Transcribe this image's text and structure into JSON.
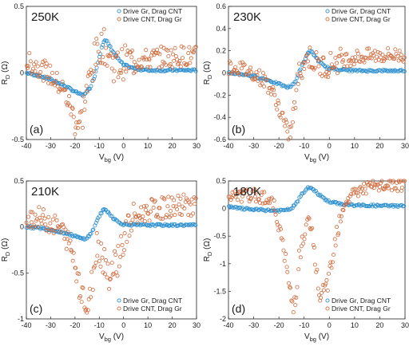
{
  "colors": {
    "drive_gr": "#2b8fd0",
    "drive_cnt": "#d2693a",
    "axis": "#222222"
  },
  "chart_data": [
    {
      "type": "scatter",
      "panel_label": "(a)",
      "temperature": "250K",
      "xlabel": "V",
      "xlabel_sub": "bg",
      "xlabel_unit": " (V)",
      "ylabel": "R",
      "ylabel_sub": "D",
      "ylabel_unit": " (Ω)",
      "xlim": [
        -40,
        30
      ],
      "ylim": [
        -0.5,
        0.5
      ],
      "xticks": [
        "-40",
        "-30",
        "-20",
        "-10",
        "0",
        "10",
        "20",
        "30"
      ],
      "yticks": [
        "-0.5",
        "0",
        "0.5"
      ],
      "ytick_values": [
        -0.5,
        0,
        0.5
      ],
      "legend": {
        "position": "top-right",
        "entries": [
          "Drive Gr, Drag CNT",
          "Drive CNT, Drag Gr"
        ]
      },
      "series": [
        {
          "name": "Drive Gr, Drag CNT",
          "color": "#2b8fd0",
          "x": [
            -40,
            -35,
            -30,
            -25,
            -20,
            -17,
            -14,
            -12,
            -10,
            -9,
            -8,
            -7,
            -6,
            -4,
            -2,
            0,
            5,
            10,
            20,
            30
          ],
          "y": [
            0.0,
            -0.02,
            -0.05,
            -0.09,
            -0.14,
            -0.17,
            -0.12,
            -0.03,
            0.12,
            0.2,
            0.24,
            0.24,
            0.21,
            0.15,
            0.1,
            0.06,
            0.03,
            0.02,
            0.02,
            0.02
          ]
        },
        {
          "name": "Drive CNT, Drag Gr",
          "color": "#d2693a",
          "x": [
            -40,
            -35,
            -30,
            -25,
            -22,
            -20,
            -18,
            -17,
            -16,
            -14,
            -12,
            -10,
            -8,
            -6,
            -4,
            -2,
            0,
            5,
            10,
            15,
            20,
            25,
            30
          ],
          "y": [
            0.08,
            0.05,
            -0.02,
            -0.12,
            -0.25,
            -0.35,
            -0.38,
            -0.32,
            -0.2,
            -0.05,
            0.1,
            0.2,
            0.2,
            0.12,
            0.06,
            0.05,
            0.08,
            0.1,
            0.1,
            0.12,
            0.12,
            0.13,
            0.12
          ]
        }
      ]
    },
    {
      "type": "scatter",
      "panel_label": "(b)",
      "temperature": "230K",
      "xlabel": "V",
      "xlabel_sub": "bg",
      "xlabel_unit": " (V)",
      "ylabel": "R",
      "ylabel_sub": "D",
      "ylabel_unit": " (Ω)",
      "xlim": [
        -40,
        30
      ],
      "ylim": [
        -0.6,
        0.6
      ],
      "xticks": [
        "-40",
        "-30",
        "-20",
        "-10",
        "0",
        "10",
        "20",
        "30"
      ],
      "yticks": [
        "-0.6",
        "-0.4",
        "-0.2",
        "0",
        "0.2",
        "0.4",
        "0.6"
      ],
      "ytick_values": [
        -0.6,
        -0.4,
        -0.2,
        0,
        0.2,
        0.4,
        0.6
      ],
      "legend": {
        "position": "top-right",
        "entries": [
          "Drive Gr, Drag CNT",
          "Drive CNT, Drag Gr"
        ]
      },
      "series": [
        {
          "name": "Drive Gr, Drag CNT",
          "color": "#2b8fd0",
          "x": [
            -40,
            -35,
            -30,
            -25,
            -20,
            -17,
            -15,
            -13,
            -11,
            -9,
            -8,
            -7,
            -6,
            -4,
            -2,
            0,
            5,
            10,
            20,
            30
          ],
          "y": [
            0.0,
            -0.01,
            -0.03,
            -0.06,
            -0.1,
            -0.13,
            -0.12,
            -0.06,
            0.06,
            0.16,
            0.19,
            0.19,
            0.16,
            0.1,
            0.06,
            0.04,
            0.03,
            0.02,
            0.02,
            0.02
          ]
        },
        {
          "name": "Drive CNT, Drag Gr",
          "color": "#d2693a",
          "x": [
            -40,
            -35,
            -30,
            -25,
            -22,
            -20,
            -18,
            -17,
            -16,
            -15,
            -14,
            -13,
            -12,
            -10,
            -8,
            -6,
            -4,
            -2,
            0,
            5,
            10,
            15,
            20,
            25,
            30
          ],
          "y": [
            0.06,
            0.04,
            0.0,
            -0.08,
            -0.2,
            -0.3,
            -0.45,
            -0.55,
            -0.58,
            -0.5,
            -0.35,
            -0.15,
            0.0,
            0.1,
            0.15,
            0.1,
            0.06,
            0.06,
            0.08,
            0.12,
            0.14,
            0.15,
            0.16,
            0.16,
            0.16
          ]
        }
      ]
    },
    {
      "type": "scatter",
      "panel_label": "(c)",
      "temperature": "210K",
      "xlabel": "V",
      "xlabel_sub": "bg",
      "xlabel_unit": " (V)",
      "ylabel": "R",
      "ylabel_sub": "D",
      "ylabel_unit": " (Ω)",
      "xlim": [
        -40,
        30
      ],
      "ylim": [
        -1,
        0.5
      ],
      "xticks": [
        "-40",
        "-30",
        "-20",
        "-10",
        "0",
        "10",
        "20",
        "30"
      ],
      "yticks": [
        "-1",
        "-0.5",
        "0",
        "0.5"
      ],
      "ytick_values": [
        -1,
        -0.5,
        0,
        0.5
      ],
      "legend": {
        "position": "bottom-right",
        "entries": [
          "Drive Gr, Drag CNT",
          "Drive CNT, Drag Gr"
        ]
      },
      "series": [
        {
          "name": "Drive Gr, Drag CNT",
          "color": "#2b8fd0",
          "x": [
            -40,
            -35,
            -30,
            -25,
            -20,
            -17,
            -15,
            -13,
            -11,
            -9,
            -8,
            -7,
            -6,
            -4,
            -2,
            0,
            5,
            10,
            20,
            30
          ],
          "y": [
            0.0,
            -0.01,
            -0.03,
            -0.06,
            -0.1,
            -0.13,
            -0.12,
            -0.06,
            0.07,
            0.16,
            0.19,
            0.18,
            0.15,
            0.09,
            0.05,
            0.03,
            0.02,
            0.02,
            0.02,
            0.02
          ]
        },
        {
          "name": "Drive CNT, Drag Gr",
          "color": "#d2693a",
          "x": [
            -40,
            -35,
            -30,
            -25,
            -22,
            -20,
            -18,
            -16,
            -15,
            -14,
            -13,
            -12,
            -11,
            -10,
            -8,
            -6,
            -4,
            -2,
            0,
            2,
            5,
            10,
            15,
            20,
            25,
            30
          ],
          "y": [
            0.12,
            0.1,
            0.05,
            -0.05,
            -0.2,
            -0.4,
            -0.6,
            -0.8,
            -0.92,
            -0.85,
            -0.6,
            -0.35,
            -0.2,
            -0.2,
            -0.35,
            -0.5,
            -0.45,
            -0.3,
            -0.15,
            0.0,
            0.1,
            0.18,
            0.2,
            0.22,
            0.24,
            0.24
          ]
        }
      ]
    },
    {
      "type": "scatter",
      "panel_label": "(d)",
      "temperature": "180K",
      "xlabel": "V",
      "xlabel_sub": "bg",
      "xlabel_unit": " (V)",
      "ylabel": "R",
      "ylabel_sub": "D",
      "ylabel_unit": " (Ω)",
      "xlim": [
        -40,
        30
      ],
      "ylim": [
        -2,
        0.5
      ],
      "xticks": [
        "-40",
        "-30",
        "-20",
        "-10",
        "0",
        "10",
        "20",
        "30"
      ],
      "yticks": [
        "-2",
        "-1.5",
        "-1",
        "-0.5",
        "0",
        "0.5"
      ],
      "ytick_values": [
        -2,
        -1.5,
        -1,
        -0.5,
        0,
        0.5
      ],
      "legend": {
        "position": "bottom-right",
        "entries": [
          "Drive Gr, Drag CNT",
          "Drive CNT, Drag Gr"
        ]
      },
      "series": [
        {
          "name": "Drive Gr, Drag CNT",
          "color": "#2b8fd0",
          "x": [
            -40,
            -35,
            -30,
            -25,
            -20,
            -17,
            -15,
            -13,
            -11,
            -9,
            -8,
            -7,
            -6,
            -4,
            -2,
            0,
            5,
            10,
            20,
            30
          ],
          "y": [
            0.03,
            0.0,
            -0.02,
            -0.03,
            -0.04,
            -0.03,
            0.0,
            0.1,
            0.25,
            0.36,
            0.38,
            0.37,
            0.33,
            0.25,
            0.18,
            0.12,
            0.08,
            0.06,
            0.05,
            0.05
          ]
        },
        {
          "name": "Drive CNT, Drag Gr",
          "color": "#d2693a",
          "x": [
            -40,
            -35,
            -30,
            -25,
            -22,
            -20,
            -18,
            -16,
            -15,
            -14,
            -13,
            -12,
            -10,
            -9,
            -8,
            -7,
            -6,
            -5,
            -4,
            -3,
            -2,
            0,
            2,
            4,
            6,
            10,
            15,
            20,
            25,
            30
          ],
          "y": [
            0.2,
            0.22,
            0.24,
            0.2,
            0.05,
            -0.3,
            -0.8,
            -1.35,
            -1.7,
            -1.75,
            -1.4,
            -0.9,
            -0.5,
            -0.35,
            -0.3,
            -0.45,
            -0.8,
            -1.2,
            -1.5,
            -1.6,
            -1.55,
            -1.2,
            -0.6,
            -0.2,
            0.1,
            0.3,
            0.38,
            0.4,
            0.42,
            0.42
          ]
        }
      ]
    }
  ]
}
